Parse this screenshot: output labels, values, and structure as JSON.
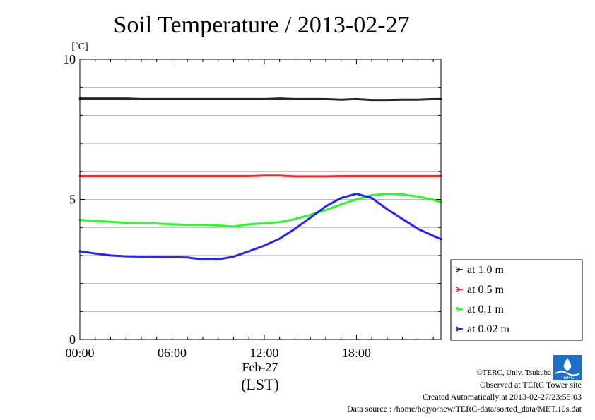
{
  "chart_data": {
    "type": "line",
    "title": "Soil Temperature / 2013-02-27",
    "unit_label": "[˚C]",
    "ylim": [
      0,
      10
    ],
    "y_ticks": [
      0,
      5,
      10
    ],
    "y_minor_step": 1,
    "xlim_hours": [
      0,
      23.5
    ],
    "x_ticks": [
      {
        "hour": 0,
        "label": "00:00"
      },
      {
        "hour": 6,
        "label": "06:00"
      },
      {
        "hour": 12,
        "label": "12:00"
      },
      {
        "hour": 18,
        "label": "18:00"
      }
    ],
    "date_label": "Feb-27",
    "timezone_label": "(LST)",
    "grid": true,
    "legend_position": "right",
    "x_hours": [
      0,
      1,
      2,
      3,
      4,
      5,
      6,
      7,
      8,
      9,
      10,
      11,
      12,
      13,
      14,
      15,
      16,
      17,
      18,
      19,
      20,
      21,
      22,
      23,
      23.5
    ],
    "series": [
      {
        "name": "at 1.0 m",
        "color": "#000000",
        "values": [
          8.6,
          8.6,
          8.6,
          8.6,
          8.58,
          8.58,
          8.58,
          8.58,
          8.58,
          8.58,
          8.58,
          8.58,
          8.58,
          8.6,
          8.58,
          8.58,
          8.58,
          8.56,
          8.58,
          8.55,
          8.55,
          8.56,
          8.56,
          8.58,
          8.58
        ]
      },
      {
        "name": "at 0.5 m",
        "color": "#ff0000",
        "values": [
          5.83,
          5.83,
          5.83,
          5.83,
          5.83,
          5.83,
          5.83,
          5.83,
          5.83,
          5.83,
          5.83,
          5.83,
          5.85,
          5.85,
          5.82,
          5.82,
          5.82,
          5.83,
          5.83,
          5.83,
          5.83,
          5.83,
          5.83,
          5.83,
          5.83
        ]
      },
      {
        "name": "at 0.1 m",
        "color": "#00ff00",
        "values": [
          4.27,
          4.23,
          4.2,
          4.16,
          4.15,
          4.14,
          4.11,
          4.09,
          4.09,
          4.07,
          4.03,
          4.11,
          4.15,
          4.19,
          4.3,
          4.45,
          4.62,
          4.82,
          5.0,
          5.15,
          5.2,
          5.18,
          5.1,
          4.99,
          4.9
        ]
      },
      {
        "name": "at 0.02 m",
        "color": "#0000ff",
        "values": [
          3.15,
          3.07,
          3.0,
          2.97,
          2.96,
          2.95,
          2.94,
          2.93,
          2.86,
          2.86,
          2.96,
          3.15,
          3.35,
          3.6,
          3.95,
          4.35,
          4.75,
          5.05,
          5.2,
          5.05,
          4.65,
          4.3,
          3.95,
          3.7,
          3.58
        ]
      }
    ]
  },
  "footer": {
    "copyright": "©TERC, Univ. Tsukuba",
    "observed": "Observed at TERC Tower site",
    "created": "Created Automatically at 2013-02-27/23:55:03",
    "source": "Data source : /home/hojyo/new/TERC-data/sorted_data/MET.10s.dat"
  },
  "logo": {
    "text": "TERC",
    "color": "#1e6fc8"
  }
}
